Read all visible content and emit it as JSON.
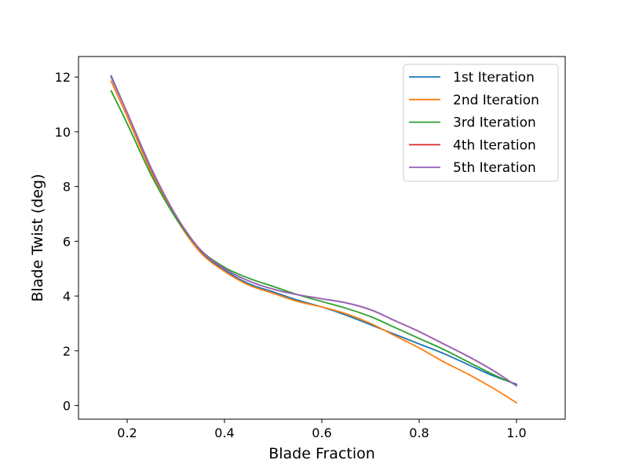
{
  "chart_data": {
    "type": "line",
    "title": "",
    "xlabel": "Blade Fraction",
    "ylabel": "Blade Twist (deg)",
    "xlim": [
      0.1,
      1.1
    ],
    "ylim": [
      -0.5,
      12.75
    ],
    "grid": false,
    "legend_position": "top-right",
    "x_ticks": [
      {
        "value": 0.2,
        "label": "0.2"
      },
      {
        "value": 0.4,
        "label": "0.4"
      },
      {
        "value": 0.6,
        "label": "0.6"
      },
      {
        "value": 0.8,
        "label": "0.8"
      },
      {
        "value": 1.0,
        "label": "1.0"
      }
    ],
    "y_ticks": [
      {
        "value": 0,
        "label": "0"
      },
      {
        "value": 2,
        "label": "2"
      },
      {
        "value": 4,
        "label": "4"
      },
      {
        "value": 6,
        "label": "6"
      },
      {
        "value": 8,
        "label": "8"
      },
      {
        "value": 10,
        "label": "10"
      },
      {
        "value": 12,
        "label": "12"
      }
    ],
    "series": [
      {
        "name": "1st Iteration",
        "color": "#1f77b4",
        "x": [
          0.167,
          0.2,
          0.25,
          0.3,
          0.35,
          0.4,
          0.45,
          0.5,
          0.55,
          0.6,
          0.65,
          0.7,
          0.75,
          0.8,
          0.85,
          0.9,
          0.95,
          1.0
        ],
        "y": [
          12.05,
          10.7,
          8.6,
          6.9,
          5.65,
          4.95,
          4.45,
          4.15,
          3.85,
          3.6,
          3.3,
          2.95,
          2.6,
          2.25,
          1.9,
          1.5,
          1.1,
          0.78
        ]
      },
      {
        "name": "2nd Iteration",
        "color": "#ff7f0e",
        "x": [
          0.167,
          0.2,
          0.25,
          0.3,
          0.35,
          0.4,
          0.45,
          0.5,
          0.55,
          0.6,
          0.65,
          0.7,
          0.75,
          0.8,
          0.85,
          0.9,
          0.95,
          1.0
        ],
        "y": [
          11.85,
          10.55,
          8.5,
          6.85,
          5.6,
          4.9,
          4.4,
          4.1,
          3.8,
          3.6,
          3.35,
          3.0,
          2.55,
          2.1,
          1.6,
          1.15,
          0.65,
          0.1
        ]
      },
      {
        "name": "3rd Iteration",
        "color": "#2ca02c",
        "x": [
          0.167,
          0.2,
          0.25,
          0.3,
          0.35,
          0.4,
          0.45,
          0.5,
          0.55,
          0.6,
          0.65,
          0.7,
          0.75,
          0.8,
          0.85,
          0.9,
          0.95,
          1.0
        ],
        "y": [
          11.5,
          10.3,
          8.4,
          6.85,
          5.7,
          5.05,
          4.65,
          4.35,
          4.05,
          3.8,
          3.55,
          3.25,
          2.85,
          2.45,
          2.05,
          1.6,
          1.15,
          0.75
        ]
      },
      {
        "name": "4th Iteration",
        "color": "#d62728",
        "x": [
          0.167,
          0.2,
          0.25,
          0.3,
          0.35,
          0.4,
          0.45,
          0.5,
          0.55,
          0.6,
          0.65,
          0.7,
          0.75,
          0.8,
          0.85,
          0.9,
          0.95,
          1.0
        ],
        "y": [
          12.0,
          10.7,
          8.65,
          6.95,
          5.7,
          5.0,
          4.55,
          4.25,
          4.05,
          3.9,
          3.75,
          3.5,
          3.1,
          2.7,
          2.25,
          1.8,
          1.3,
          0.72
        ]
      },
      {
        "name": "5th Iteration",
        "color": "#9467bd",
        "x": [
          0.167,
          0.2,
          0.25,
          0.3,
          0.35,
          0.4,
          0.45,
          0.5,
          0.55,
          0.6,
          0.65,
          0.7,
          0.75,
          0.8,
          0.85,
          0.9,
          0.95,
          1.0
        ],
        "y": [
          12.0,
          10.7,
          8.65,
          6.95,
          5.7,
          5.0,
          4.55,
          4.25,
          4.05,
          3.9,
          3.75,
          3.5,
          3.1,
          2.7,
          2.25,
          1.8,
          1.3,
          0.72
        ]
      }
    ]
  }
}
